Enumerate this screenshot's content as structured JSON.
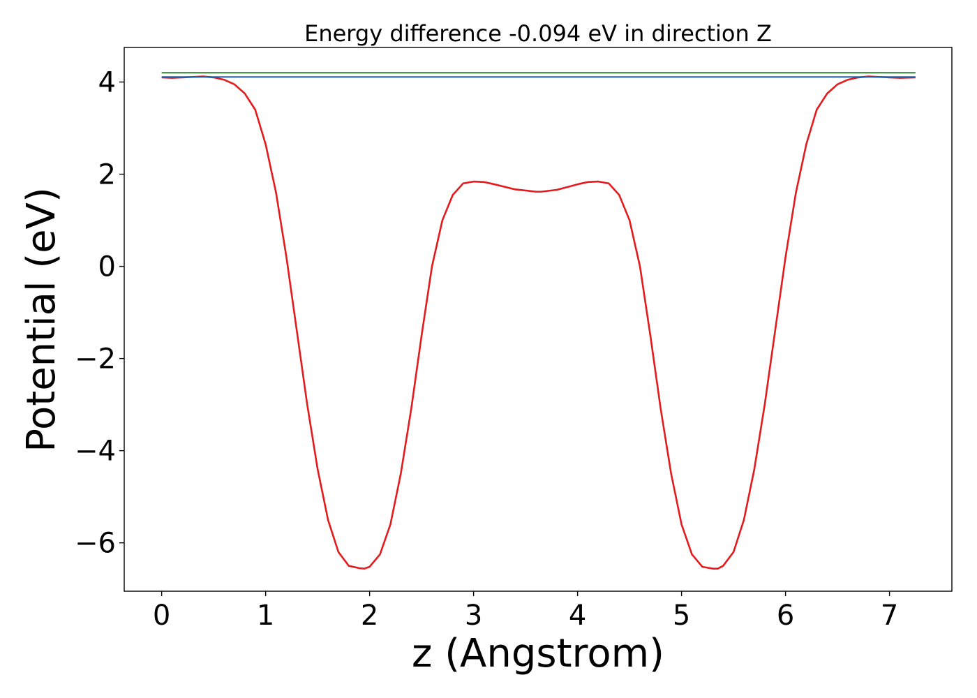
{
  "chart_data": {
    "type": "line",
    "title": "Energy difference -0.094 eV in direction Z",
    "xlabel": "z (Angstrom)",
    "ylabel": "Potential (eV)",
    "xlim": [
      -0.36,
      7.6
    ],
    "ylim": [
      -7.05,
      4.75
    ],
    "xticks": [
      0,
      1,
      2,
      3,
      4,
      5,
      6,
      7
    ],
    "xtick_labels": [
      "0",
      "1",
      "2",
      "3",
      "4",
      "5",
      "6",
      "7"
    ],
    "yticks": [
      4,
      2,
      0,
      -2,
      -4,
      -6
    ],
    "ytick_labels": [
      "4",
      "2",
      "0",
      "−2",
      "−4",
      "−6"
    ],
    "grid": false,
    "series": [
      {
        "color": "#e41a1c",
        "x": [
          0.0,
          0.1,
          0.2,
          0.3,
          0.4,
          0.5,
          0.6,
          0.7,
          0.8,
          0.9,
          1.0,
          1.1,
          1.2,
          1.3,
          1.4,
          1.5,
          1.6,
          1.7,
          1.8,
          1.9,
          1.95,
          2.0,
          2.1,
          2.2,
          2.3,
          2.4,
          2.5,
          2.6,
          2.7,
          2.8,
          2.9,
          3.0,
          3.1,
          3.2,
          3.4,
          3.6,
          3.65,
          3.8,
          4.0,
          4.1,
          4.2,
          4.3,
          4.4,
          4.5,
          4.6,
          4.7,
          4.8,
          4.9,
          5.0,
          5.1,
          5.2,
          5.3,
          5.35,
          5.4,
          5.5,
          5.6,
          5.7,
          5.8,
          5.9,
          6.0,
          6.1,
          6.2,
          6.3,
          6.4,
          6.5,
          6.6,
          6.7,
          6.8,
          6.9,
          7.0,
          7.1,
          7.25
        ],
        "y": [
          4.1,
          4.09,
          4.1,
          4.11,
          4.12,
          4.1,
          4.05,
          3.95,
          3.75,
          3.4,
          2.65,
          1.6,
          0.2,
          -1.4,
          -3.0,
          -4.4,
          -5.5,
          -6.2,
          -6.5,
          -6.55,
          -6.56,
          -6.52,
          -6.25,
          -5.6,
          -4.5,
          -3.1,
          -1.5,
          0.0,
          1.0,
          1.55,
          1.8,
          1.84,
          1.83,
          1.78,
          1.67,
          1.62,
          1.62,
          1.66,
          1.78,
          1.83,
          1.84,
          1.8,
          1.55,
          1.0,
          0.0,
          -1.5,
          -3.1,
          -4.5,
          -5.6,
          -6.25,
          -6.52,
          -6.56,
          -6.56,
          -6.5,
          -6.2,
          -5.5,
          -4.4,
          -3.0,
          -1.4,
          0.2,
          1.6,
          2.65,
          3.4,
          3.75,
          3.95,
          4.05,
          4.1,
          4.12,
          4.11,
          4.1,
          4.09,
          4.1
        ]
      },
      {
        "color": "#2e7d32",
        "x": [
          0.0,
          7.25
        ],
        "y": [
          4.2,
          4.2
        ]
      },
      {
        "color": "#1f5fb0",
        "x": [
          0.0,
          7.25
        ],
        "y": [
          4.11,
          4.11
        ]
      }
    ]
  }
}
